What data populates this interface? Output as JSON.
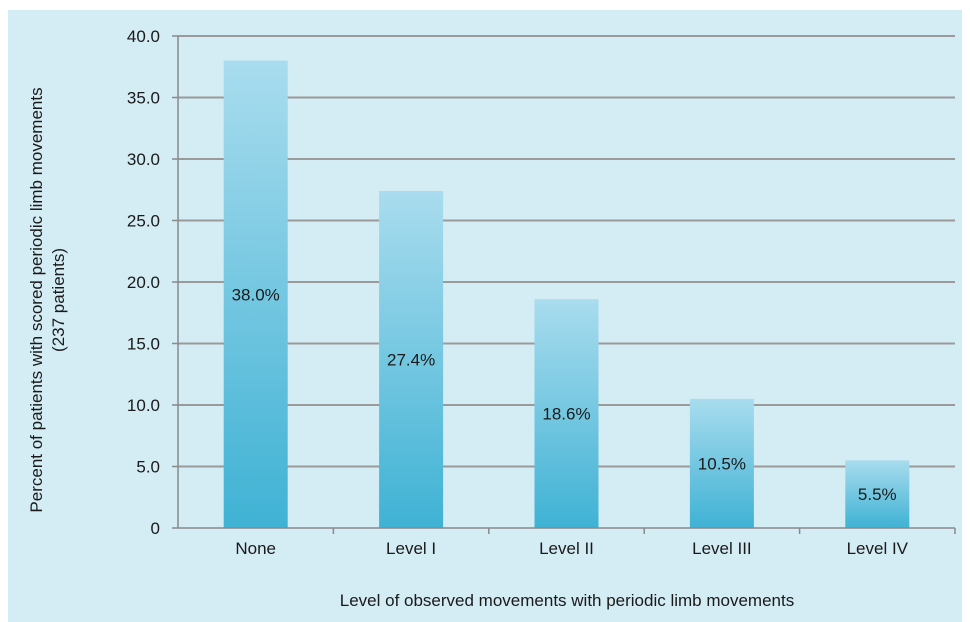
{
  "chart_data": {
    "type": "bar",
    "categories": [
      "None",
      "Level I",
      "Level II",
      "Level III",
      "Level IV"
    ],
    "values": [
      38.0,
      27.4,
      18.6,
      10.5,
      5.5
    ],
    "data_labels": [
      "38.0%",
      "27.4%",
      "18.6%",
      "10.5%",
      "5.5%"
    ],
    "xlabel": "Level of observed movements with periodic limb movements",
    "ylabel_lines": [
      "Percent of patients with scored periodic limb movements",
      "(237 patients)"
    ],
    "ylim": [
      0,
      40
    ],
    "yticks": [
      0,
      5,
      10,
      15,
      20,
      25,
      30,
      35,
      40
    ],
    "ytick_labels": [
      "0",
      "5.0",
      "10.0",
      "15.0",
      "20.0",
      "25.0",
      "30.0",
      "35.0",
      "40.0"
    ],
    "grid": true,
    "legend": "none"
  },
  "colors": {
    "background": "#d4ecf4",
    "bar_top": "#a9dcee",
    "bar_bottom": "#3fb2d4",
    "grid": "#9a9a9a",
    "axis": "#8a8a8a"
  }
}
